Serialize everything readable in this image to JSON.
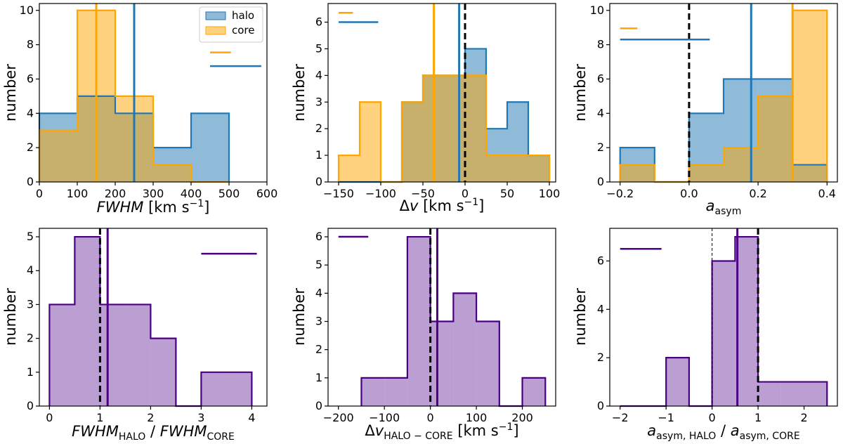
{
  "colors": {
    "halo_fill": "#1f77b4",
    "halo_edge": "#1f77b4",
    "core_fill": "#ffa500",
    "core_edge": "#ffa500",
    "ratio_fill": "#7a3fa5",
    "ratio_edge": "#4b0082"
  },
  "chart_data": [
    {
      "id": "fwhm",
      "type": "bar",
      "xlabel": "FWHM [km s⁻¹]",
      "ylabel": "number",
      "xlim": [
        0,
        600
      ],
      "ylim": [
        0,
        10.4
      ],
      "xticks": [
        0,
        100,
        200,
        300,
        400,
        500,
        600
      ],
      "yticks": [
        0,
        2,
        4,
        6,
        8,
        10
      ],
      "bin_edges": [
        0,
        100,
        200,
        300,
        400,
        500
      ],
      "series": [
        {
          "name": "halo",
          "color_key": "halo",
          "values": [
            4,
            5,
            4,
            2,
            4
          ]
        },
        {
          "name": "core",
          "color_key": "core",
          "values": [
            3,
            10,
            5,
            1,
            0
          ]
        }
      ],
      "vlines": [
        {
          "x": 150,
          "color_key": "core_edge",
          "style": "solid"
        },
        {
          "x": 250,
          "color_key": "halo_edge",
          "style": "solid"
        }
      ],
      "errbars": [
        {
          "x0": 450,
          "x1": 505,
          "y": 7.55,
          "color_key": "core_edge"
        },
        {
          "x0": 450,
          "x1": 585,
          "y": 6.75,
          "color_key": "halo_edge"
        }
      ],
      "legend": {
        "position": "top-right",
        "entries": [
          {
            "label": "halo",
            "color_key": "halo"
          },
          {
            "label": "core",
            "color_key": "core"
          }
        ]
      }
    },
    {
      "id": "dv",
      "type": "bar",
      "xlabel": "Δv [km s⁻¹]",
      "ylabel": "number",
      "xlim": [
        -162.5,
        107.5
      ],
      "ylim": [
        0,
        6.7
      ],
      "xticks": [
        -150,
        -100,
        -50,
        0,
        50,
        100
      ],
      "yticks": [
        0,
        1,
        2,
        3,
        4,
        5,
        6
      ],
      "bin_edges": [
        -150,
        -125,
        -100,
        -75,
        -50,
        -25,
        0,
        25,
        50,
        75,
        100
      ],
      "series": [
        {
          "name": "halo",
          "color_key": "halo",
          "values": [
            0,
            0,
            0,
            3,
            4,
            4,
            5,
            2,
            3,
            1
          ]
        },
        {
          "name": "core",
          "color_key": "core",
          "values": [
            1,
            3,
            0,
            3,
            4,
            4,
            4,
            1,
            1,
            1
          ]
        }
      ],
      "vlines": [
        {
          "x": -37,
          "color_key": "core_edge",
          "style": "solid"
        },
        {
          "x": -7,
          "color_key": "halo_edge",
          "style": "solid"
        },
        {
          "x": 0,
          "color_key": "black",
          "style": "dashed"
        }
      ],
      "errbars": [
        {
          "x0": -150,
          "x1": -133,
          "y": 6.35,
          "color_key": "core_edge"
        },
        {
          "x0": -150,
          "x1": -103,
          "y": 6.0,
          "color_key": "halo_edge"
        }
      ]
    },
    {
      "id": "aasym",
      "type": "bar",
      "xlabel": "a_asym",
      "ylabel": "number",
      "xlim": [
        -0.23,
        0.43
      ],
      "ylim": [
        0,
        10.4
      ],
      "xticks": [
        -0.2,
        0.0,
        0.2,
        0.4
      ],
      "xticklabels": [
        "−0.2",
        "0.0",
        "0.2",
        "0.4"
      ],
      "yticks": [
        0,
        2,
        4,
        6,
        8,
        10
      ],
      "bin_edges": [
        -0.2,
        -0.1,
        0.0,
        0.1,
        0.2,
        0.3,
        0.4
      ],
      "series": [
        {
          "name": "halo",
          "color_key": "halo",
          "values": [
            2,
            0,
            4,
            6,
            6,
            1
          ]
        },
        {
          "name": "core",
          "color_key": "core",
          "values": [
            1,
            0,
            1,
            2,
            5,
            10
          ]
        }
      ],
      "vlines": [
        {
          "x": 0.0,
          "color_key": "black",
          "style": "dashed"
        },
        {
          "x": 0.18,
          "color_key": "halo_edge",
          "style": "solid"
        },
        {
          "x": 0.3,
          "color_key": "core_edge",
          "style": "solid"
        }
      ],
      "errbars": [
        {
          "x0": -0.2,
          "x1": -0.15,
          "y": 8.95,
          "color_key": "core_edge"
        },
        {
          "x0": -0.2,
          "x1": 0.06,
          "y": 8.3,
          "color_key": "halo_edge"
        }
      ]
    },
    {
      "id": "fwhm_ratio",
      "type": "bar",
      "xlabel": "FWHM_HALO / FWHM_CORE",
      "ylabel": "number",
      "xlim": [
        -0.2,
        4.3
      ],
      "ylim": [
        0,
        5.25
      ],
      "xticks": [
        0,
        1,
        2,
        3,
        4
      ],
      "yticks": [
        0,
        1,
        2,
        3,
        4,
        5
      ],
      "bin_edges": [
        0,
        0.5,
        1.0,
        1.5,
        2.0,
        2.5,
        3.0,
        3.5,
        4.0
      ],
      "series": [
        {
          "name": "ratio",
          "color_key": "ratio",
          "values": [
            3,
            5,
            3,
            3,
            2,
            0,
            1,
            1
          ]
        }
      ],
      "vlines": [
        {
          "x": 1.0,
          "color_key": "black",
          "style": "dashed"
        },
        {
          "x": 1.15,
          "color_key": "ratio_edge",
          "style": "solid"
        }
      ],
      "errbars": [
        {
          "x0": 3.0,
          "x1": 4.1,
          "y": 4.5,
          "color_key": "ratio_edge"
        }
      ]
    },
    {
      "id": "dv_diff",
      "type": "bar",
      "xlabel": "Δv_HALO − CORE [km s⁻¹]",
      "ylabel": "number",
      "xlim": [
        -222.5,
        272.5
      ],
      "ylim": [
        0,
        6.3
      ],
      "xticks": [
        -200,
        -100,
        0,
        100,
        200
      ],
      "xticklabels": [
        "−200",
        "−100",
        "0",
        "100",
        "200"
      ],
      "yticks": [
        0,
        1,
        2,
        3,
        4,
        5,
        6
      ],
      "bin_edges": [
        -150,
        -100,
        -50,
        0,
        50,
        100,
        150,
        200,
        250
      ],
      "series": [
        {
          "name": "ratio",
          "color_key": "ratio",
          "values": [
            1,
            1,
            6,
            3,
            4,
            3,
            0,
            1
          ]
        }
      ],
      "vlines": [
        {
          "x": 0,
          "color_key": "black",
          "style": "dashed"
        },
        {
          "x": 15,
          "color_key": "ratio_edge",
          "style": "solid"
        }
      ],
      "errbars": [
        {
          "x0": -200,
          "x1": -135,
          "y": 6.0,
          "color_key": "ratio_edge"
        }
      ]
    },
    {
      "id": "aasym_ratio",
      "type": "bar",
      "xlabel": "a_asym,HALO / a_asym,CORE",
      "ylabel": "number",
      "xlim": [
        -2.225,
        2.725
      ],
      "ylim": [
        0,
        7.35
      ],
      "xticks": [
        -2,
        -1,
        0,
        1,
        2
      ],
      "xticklabels": [
        "−2",
        "−1",
        "0",
        "1",
        "2"
      ],
      "yticks": [
        0,
        2,
        4,
        6
      ],
      "bin_edges": [
        -2.0,
        -1.5,
        -1.0,
        -0.5,
        0.0,
        0.5,
        1.0,
        1.5,
        2.0,
        2.5
      ],
      "series": [
        {
          "name": "ratio",
          "color_key": "ratio",
          "values": [
            0,
            0,
            2,
            0,
            6,
            7,
            1,
            1,
            1
          ]
        }
      ],
      "vlines": [
        {
          "x": 0,
          "color_key": "black",
          "style": "dashed_thin"
        },
        {
          "x": 0.55,
          "color_key": "ratio_edge",
          "style": "solid"
        },
        {
          "x": 1.0,
          "color_key": "black",
          "style": "dashed"
        }
      ],
      "errbars": [
        {
          "x0": -2.0,
          "x1": -1.1,
          "y": 6.5,
          "color_key": "ratio_edge"
        }
      ]
    }
  ]
}
